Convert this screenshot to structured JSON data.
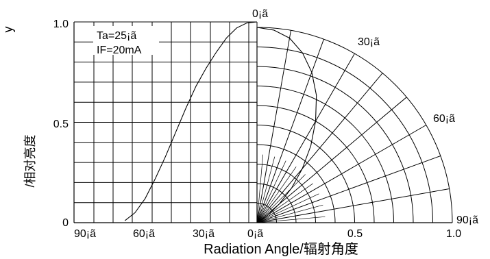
{
  "chart_data": {
    "type": "line",
    "subtype": "polar-radiation-pattern",
    "ylabel": "/相对亮度",
    "ylabel_top": "y",
    "xlabel": "Radiation Angle/辐射角度",
    "conditions": [
      "Ta=25¡ã",
      "IF=20mA"
    ],
    "y_ticks": [
      "0",
      "0.5",
      "1.0"
    ],
    "x_ticks_left": [
      "90¡ã",
      "60¡ã",
      "30¡ã",
      "0¡ã"
    ],
    "x_ticks_right": [
      "0¡ã",
      "0.5",
      "1.0"
    ],
    "angle_labels": [
      "0¡ã",
      "30¡ã",
      "60¡ã",
      "90¡ã"
    ],
    "ylim": [
      0,
      1.0
    ],
    "angle_range_deg": [
      0,
      90
    ],
    "grid": true,
    "series": [
      {
        "kind": "relative-intensity-vs-angle",
        "x_unit": "degrees",
        "points": [
          {
            "angle": 0,
            "intensity": 1.0
          },
          {
            "angle": 5,
            "intensity": 0.995
          },
          {
            "angle": 10,
            "intensity": 0.97
          },
          {
            "angle": 15,
            "intensity": 0.92
          },
          {
            "angle": 20,
            "intensity": 0.85
          },
          {
            "angle": 25,
            "intensity": 0.77
          },
          {
            "angle": 30,
            "intensity": 0.68
          },
          {
            "angle": 35,
            "intensity": 0.57
          },
          {
            "angle": 40,
            "intensity": 0.45
          },
          {
            "angle": 45,
            "intensity": 0.33
          },
          {
            "angle": 50,
            "intensity": 0.22
          },
          {
            "angle": 55,
            "intensity": 0.12
          },
          {
            "angle": 60,
            "intensity": 0.05
          },
          {
            "angle": 65,
            "intensity": 0.01
          }
        ]
      },
      {
        "kind": "polar-pattern",
        "points": [
          {
            "angle": 0,
            "intensity": 1.0
          },
          {
            "angle": 5,
            "intensity": 0.99
          },
          {
            "angle": 10,
            "intensity": 0.96
          },
          {
            "angle": 15,
            "intensity": 0.9
          },
          {
            "angle": 20,
            "intensity": 0.82
          },
          {
            "angle": 25,
            "intensity": 0.72
          },
          {
            "angle": 30,
            "intensity": 0.6
          },
          {
            "angle": 35,
            "intensity": 0.48
          },
          {
            "angle": 40,
            "intensity": 0.36
          },
          {
            "angle": 45,
            "intensity": 0.25
          },
          {
            "angle": 50,
            "intensity": 0.15
          },
          {
            "angle": 55,
            "intensity": 0.07
          },
          {
            "angle": 60,
            "intensity": 0.0
          }
        ]
      }
    ]
  }
}
